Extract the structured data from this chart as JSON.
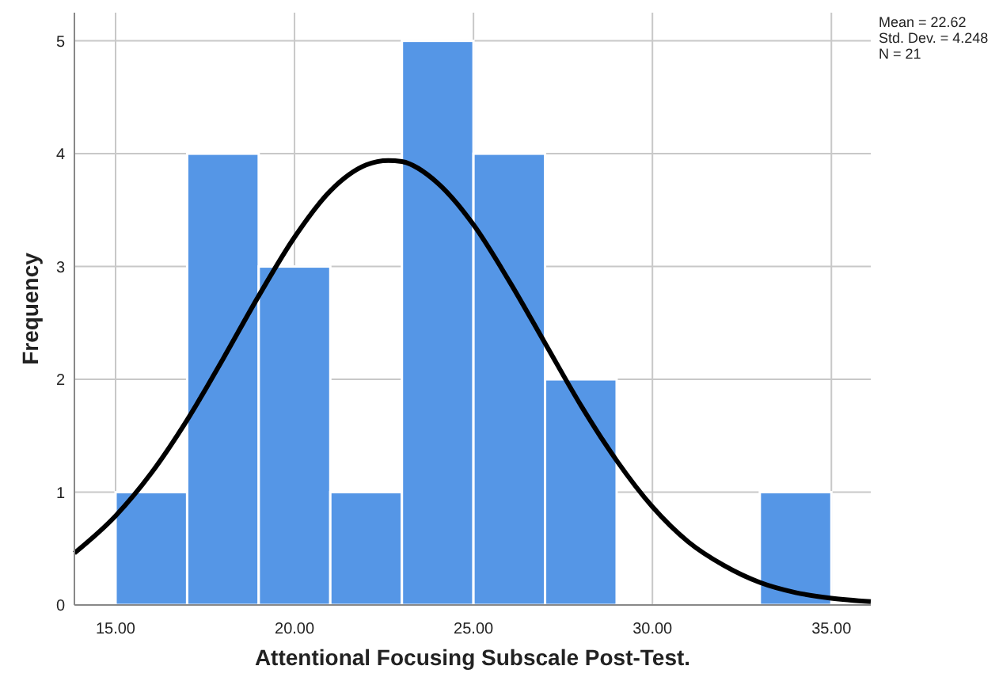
{
  "chart_data": {
    "type": "histogram",
    "xlabel": "Attentional Focusing Subscale Post-Test.",
    "ylabel": "Frequency",
    "bins": [
      15,
      17,
      19,
      21,
      23,
      25,
      27,
      29,
      31,
      33,
      35
    ],
    "xlim": [
      13.85,
      36.1
    ],
    "xticks": [
      {
        "value": 15,
        "label": "15.00"
      },
      {
        "value": 20,
        "label": "20.00"
      },
      {
        "value": 25,
        "label": "25.00"
      },
      {
        "value": 30,
        "label": "30.00"
      },
      {
        "value": 35,
        "label": "35.00"
      }
    ],
    "ylim": [
      0,
      5.25
    ],
    "yticks": [
      0,
      1,
      2,
      3,
      4,
      5
    ],
    "grid": true,
    "series": [
      {
        "color": "#5596e6",
        "values": [
          1,
          4,
          3,
          1,
          5,
          4,
          2,
          0,
          0,
          1
        ]
      },
      {
        "type": "line",
        "color": "#000000",
        "x": [
          13.85,
          15,
          16,
          17,
          18,
          19,
          20,
          21,
          22,
          22.62,
          23,
          24,
          25,
          26,
          27,
          28,
          29,
          30,
          31,
          32,
          33,
          34,
          35,
          36.1
        ],
        "values": [
          0.46,
          0.79,
          1.17,
          1.64,
          2.18,
          2.74,
          3.26,
          3.67,
          3.9,
          3.94,
          3.93,
          3.74,
          3.37,
          2.87,
          2.32,
          1.77,
          1.28,
          0.87,
          0.56,
          0.35,
          0.2,
          0.11,
          0.06,
          0.03
        ]
      }
    ],
    "annotations": [
      "Mean = 22.62",
      "Std. Dev. = 4.248",
      "N = 21"
    ]
  }
}
